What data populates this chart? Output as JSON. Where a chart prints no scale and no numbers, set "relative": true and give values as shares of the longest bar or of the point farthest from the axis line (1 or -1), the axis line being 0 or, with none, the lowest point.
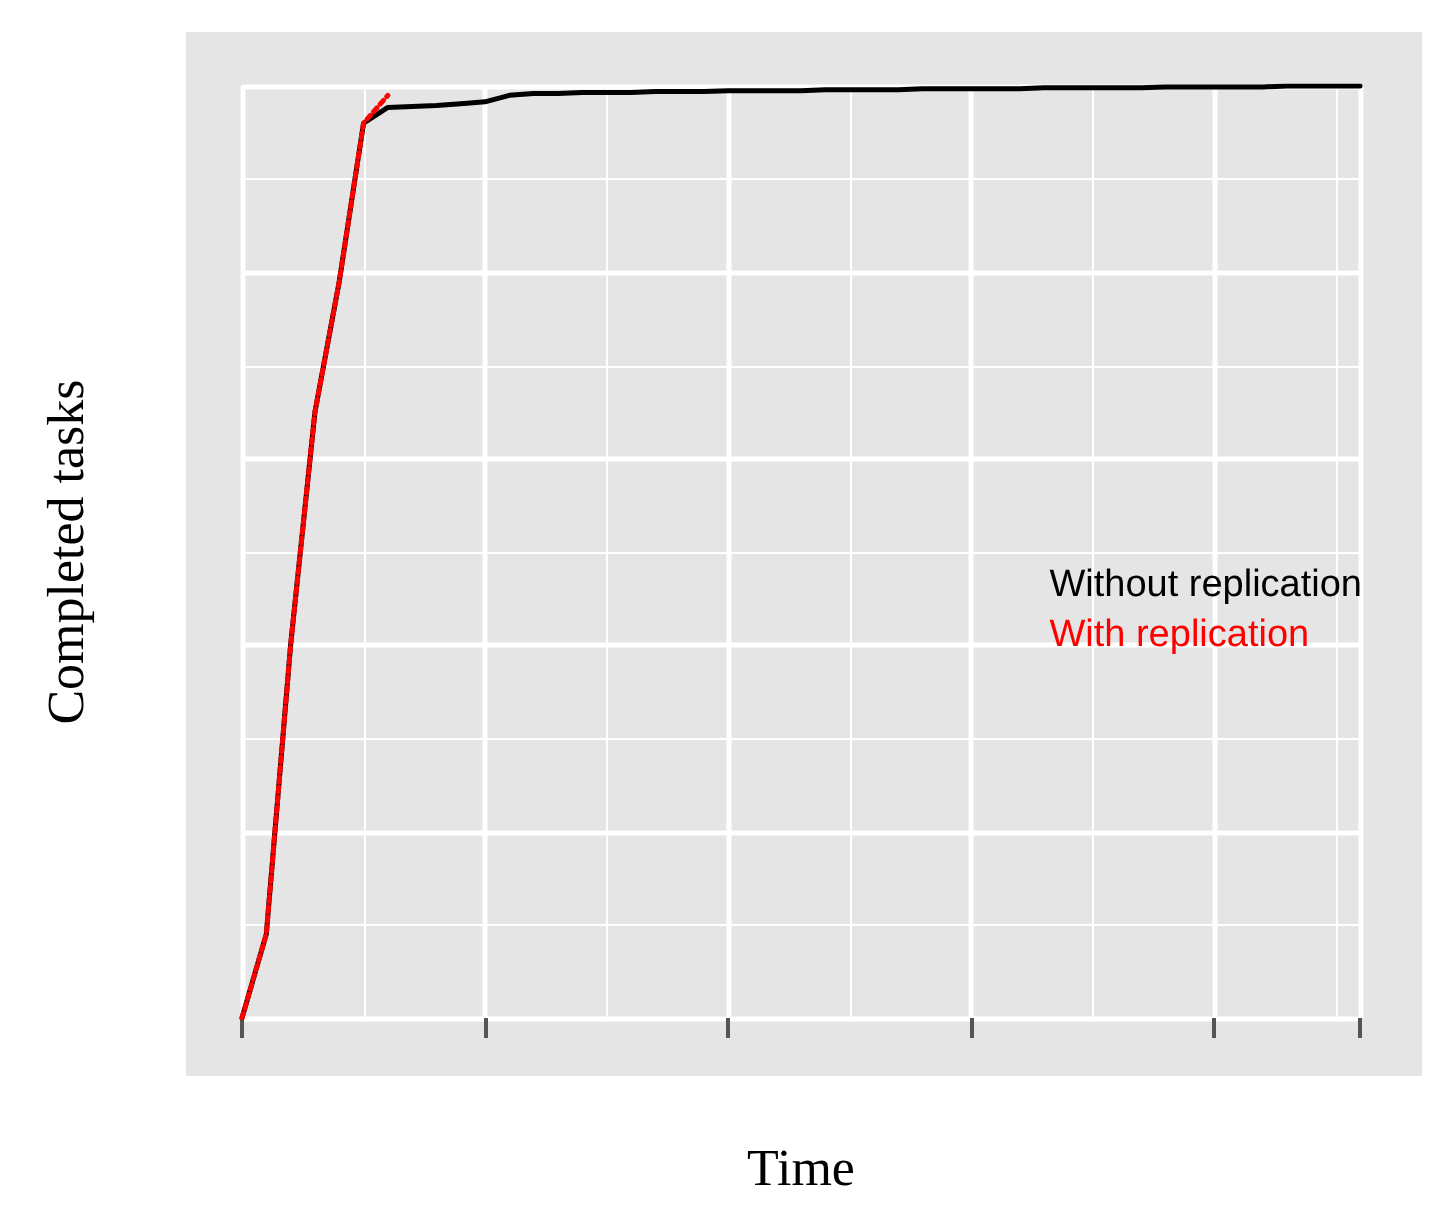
{
  "chart_data": {
    "type": "line",
    "relative": true,
    "xlabel": "Time",
    "ylabel": "Completed tasks",
    "grid": true,
    "legend": "right",
    "marker": "none",
    "categories": [
      null,
      null,
      null,
      null,
      null,
      null,
      null,
      null,
      null,
      null,
      null,
      null,
      null,
      null,
      null,
      null,
      null,
      null,
      null,
      null,
      null,
      null,
      null,
      null,
      null,
      null,
      null,
      null,
      null,
      null,
      null,
      null,
      null,
      null,
      null,
      null,
      null,
      null,
      null,
      null,
      null,
      null,
      null,
      null,
      null,
      null,
      null
    ],
    "series": [
      {
        "name": "Without replication",
        "color": "#000000",
        "line_style": "solid",
        "values": [
          0,
          0.09,
          0.4,
          0.65,
          0.79,
          0.96,
          0.977,
          0.978,
          0.979,
          0.981,
          0.983,
          0.99,
          0.992,
          0.992,
          0.993,
          0.993,
          0.993,
          0.994,
          0.994,
          0.994,
          0.995,
          0.995,
          0.995,
          0.995,
          0.996,
          0.996,
          0.996,
          0.996,
          0.997,
          0.997,
          0.997,
          0.997,
          0.997,
          0.998,
          0.998,
          0.998,
          0.998,
          0.998,
          0.999,
          0.999,
          0.999,
          0.999,
          0.999,
          1,
          1,
          1,
          1
        ]
      },
      {
        "name": "With replication",
        "color": "#ff0000",
        "line_style": "dotted",
        "values": [
          0,
          0.09,
          0.4,
          0.65,
          0.79,
          0.96,
          0.99,
          null,
          null,
          null,
          null,
          null,
          null,
          null,
          null,
          null,
          null,
          null,
          null,
          null,
          null,
          null,
          null,
          null,
          null,
          null,
          null,
          null,
          null,
          null,
          null,
          null,
          null,
          null,
          null,
          null,
          null,
          null,
          null,
          null,
          null,
          null,
          null,
          null,
          null,
          null,
          null
        ]
      }
    ]
  }
}
